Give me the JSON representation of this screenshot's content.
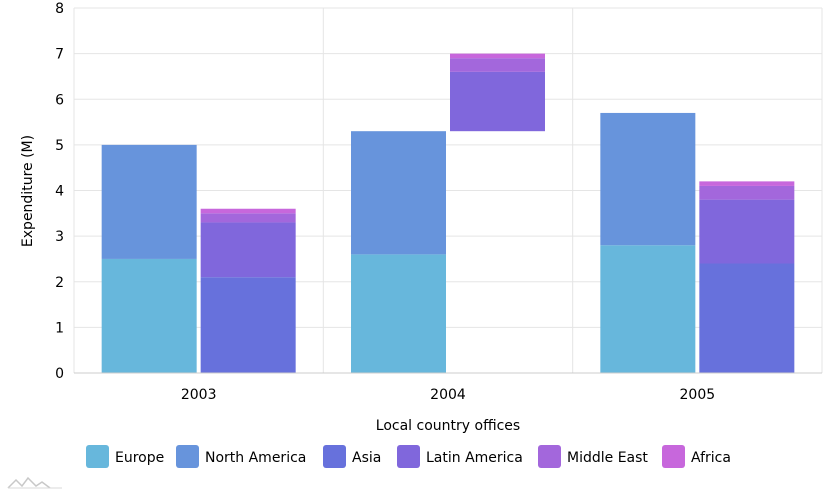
{
  "chart_data": {
    "type": "bar",
    "stacked": true,
    "categories": [
      "2003",
      "2004",
      "2005"
    ],
    "xlabel": "Local country offices",
    "ylabel": "Expenditure (M)",
    "ylim": [
      0,
      8
    ],
    "yticks": [
      0,
      1,
      2,
      3,
      4,
      5,
      6,
      7,
      8
    ],
    "grid": true,
    "legend_position": "bottom-left",
    "stacks": [
      {
        "name": "stack-1",
        "series": [
          {
            "name": "Europe",
            "color": "#67b7dc",
            "values": [
              2.5,
              2.6,
              2.8
            ]
          },
          {
            "name": "North America",
            "color": "#6794dc",
            "values": [
              2.5,
              2.7,
              2.9
            ]
          }
        ]
      },
      {
        "name": "stack-2",
        "series": [
          {
            "name": "Asia",
            "color": "#6771dc",
            "values": [
              2.1,
              0,
              2.4
            ]
          },
          {
            "name": "Latin America",
            "color": "#8067dc",
            "values": [
              1.2,
              1.3,
              1.4
            ]
          },
          {
            "name": "Middle East",
            "color": "#a367dc",
            "values": [
              0.2,
              0.3,
              0.3
            ]
          },
          {
            "name": "Africa",
            "color": "#c767dc",
            "values": [
              0.1,
              0.1,
              0.1
            ]
          }
        ],
        "base_offsets": [
          0,
          5.3,
          0
        ]
      }
    ],
    "legend": [
      "Europe",
      "North America",
      "Asia",
      "Latin America",
      "Middle East",
      "Africa"
    ]
  },
  "colors": {
    "grid": "#e5e5e5",
    "axis": "#cccccc",
    "text": "#000000",
    "logo": "#c0c0c0"
  },
  "icons": {
    "logo": "wave-logo-icon"
  }
}
